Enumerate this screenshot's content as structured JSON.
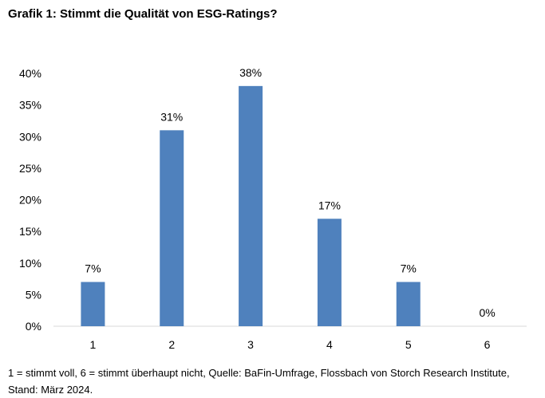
{
  "title": "Grafik 1: Stimmt die Qualität von ESG-Ratings?",
  "footnote": "1 = stimmt voll, 6 = stimmt überhaupt nicht, Quelle: BaFin-Umfrage, Flossbach von Storch Research Institute, Stand: März 2024.",
  "colors": {
    "bar": "#4f81bd",
    "axis": "#d9d9d9"
  },
  "chart_data": {
    "type": "bar",
    "title": "Grafik 1: Stimmt die Qualität von ESG-Ratings?",
    "categories": [
      "1",
      "2",
      "3",
      "4",
      "5",
      "6"
    ],
    "values": [
      7,
      31,
      38,
      17,
      7,
      0
    ],
    "data_labels": [
      "7%",
      "31%",
      "38%",
      "17%",
      "7%",
      "0%"
    ],
    "yticks": [
      "0%",
      "5%",
      "10%",
      "15%",
      "20%",
      "25%",
      "30%",
      "35%",
      "40%"
    ],
    "ylim": [
      0,
      40
    ],
    "xlabel": "",
    "ylabel": "",
    "grid": false,
    "legend": "none"
  }
}
